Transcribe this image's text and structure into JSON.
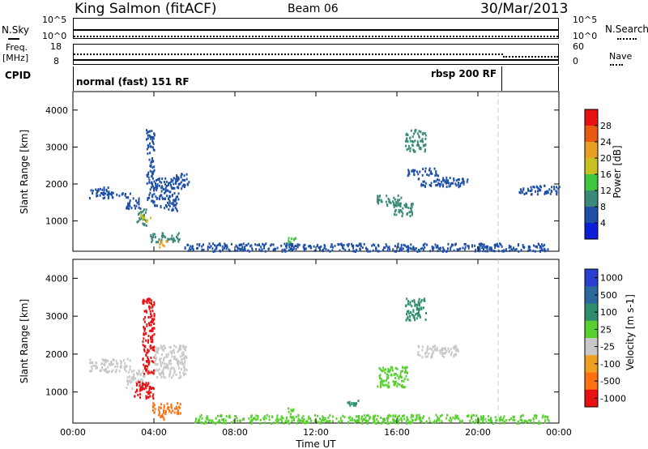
{
  "header": {
    "station": "King Salmon (fitACF)",
    "beam": "Beam 06",
    "date": "30/Mar/2013"
  },
  "top_panel": {
    "left_label": "N.Sky",
    "left_tick_hi": "10^5",
    "left_tick_lo": "10^0",
    "right_label": "N.Search",
    "right_tick_hi": "10^5",
    "right_tick_lo": "10^0"
  },
  "freq_panel": {
    "left_label_1": "Freq.",
    "left_label_2": "[MHz]",
    "left_tick_hi": "18",
    "left_tick_lo": "8",
    "right_label": "Nave",
    "right_tick_hi": "60",
    "right_tick_lo": "0"
  },
  "cpid_panel": {
    "label": "CPID",
    "mode_1": "normal (fast) 151 RF",
    "mode_2": "rbsp 200 RF",
    "mode_2_start_hour": 21.0
  },
  "colors": {
    "power": [
      "#0b1fd8",
      "#1f4fa6",
      "#3a8a7a",
      "#3fc63f",
      "#c8c020",
      "#e8a020",
      "#e85a10",
      "#e81010"
    ],
    "velocity": [
      "#2a3fd0",
      "#2b68a0",
      "#2f8c6c",
      "#58d030",
      "#c8c8c8",
      "#f0a020",
      "#ff7010",
      "#e81010"
    ]
  },
  "chart_data": [
    {
      "type": "heatmap",
      "name": "power",
      "xlabel": "",
      "ylabel": "Slant Range [km]",
      "xlim": [
        0,
        24
      ],
      "ylim": [
        180,
        4500
      ],
      "yticks": [
        "1000",
        "2000",
        "3000",
        "4000"
      ],
      "colorbar_label": "Power [dB]",
      "colorbar_ticks": [
        "4",
        "8",
        "12",
        "16",
        "20",
        "24",
        "28"
      ],
      "clim": [
        0,
        32
      ],
      "regions": [
        {
          "t0": 0.8,
          "t1": 1.8,
          "r0": 1620,
          "r1": 1950,
          "v": 6
        },
        {
          "t0": 1.8,
          "t1": 2.8,
          "r0": 1650,
          "r1": 1800,
          "v": 5
        },
        {
          "t0": 2.6,
          "t1": 3.3,
          "r0": 1350,
          "r1": 1650,
          "v": 7
        },
        {
          "t0": 3.1,
          "t1": 3.6,
          "r0": 900,
          "r1": 1350,
          "v": 9
        },
        {
          "t0": 3.3,
          "t1": 3.8,
          "r0": 1000,
          "r1": 1200,
          "v": 18
        },
        {
          "t0": 3.6,
          "t1": 4.0,
          "r0": 1500,
          "r1": 3500,
          "v": 6
        },
        {
          "t0": 4.0,
          "t1": 5.2,
          "r0": 1300,
          "r1": 2200,
          "v": 7
        },
        {
          "t0": 5.0,
          "t1": 5.7,
          "r0": 1900,
          "r1": 2300,
          "v": 6
        },
        {
          "t0": 3.8,
          "t1": 5.3,
          "r0": 450,
          "r1": 700,
          "v": 8
        },
        {
          "t0": 4.2,
          "t1": 4.6,
          "r0": 300,
          "r1": 500,
          "v": 20
        },
        {
          "t0": 15.0,
          "t1": 16.2,
          "r0": 1400,
          "r1": 1720,
          "v": 10
        },
        {
          "t0": 15.8,
          "t1": 16.8,
          "r0": 1150,
          "r1": 1500,
          "v": 9
        },
        {
          "t0": 16.4,
          "t1": 17.4,
          "r0": 2900,
          "r1": 3500,
          "v": 8
        },
        {
          "t0": 17.0,
          "t1": 19.5,
          "r0": 1950,
          "r1": 2200,
          "v": 6
        },
        {
          "t0": 16.5,
          "t1": 18.0,
          "r0": 2250,
          "r1": 2450,
          "v": 5
        },
        {
          "t0": 5.5,
          "t1": 23.5,
          "r0": 200,
          "r1": 420,
          "v": 6
        },
        {
          "t0": 10.6,
          "t1": 11.0,
          "r0": 420,
          "r1": 620,
          "v": 14
        },
        {
          "t0": 22.0,
          "t1": 24.0,
          "r0": 1750,
          "r1": 2000,
          "v": 5
        }
      ]
    },
    {
      "type": "heatmap",
      "name": "velocity",
      "xlabel": "Time UT",
      "ylabel": "Slant Range [km]",
      "xlim": [
        0,
        24
      ],
      "ylim": [
        180,
        4500
      ],
      "xticks": [
        "00:00",
        "04:00",
        "08:00",
        "12:00",
        "16:00",
        "20:00",
        "00:00"
      ],
      "yticks": [
        "1000",
        "2000",
        "3000",
        "4000"
      ],
      "colorbar_label": "Velocity [m s-1]",
      "colorbar_ticks": [
        "1000",
        "500",
        "100",
        "25",
        "-25",
        "-100",
        "-500",
        "-1000"
      ],
      "regions": [
        {
          "t0": 0.8,
          "t1": 2.8,
          "r0": 1550,
          "r1": 1900,
          "v": 4
        },
        {
          "t0": 2.6,
          "t1": 3.5,
          "r0": 1100,
          "r1": 1600,
          "v": 4
        },
        {
          "t0": 3.4,
          "t1": 4.0,
          "r0": 1500,
          "r1": 3500,
          "v": 7
        },
        {
          "t0": 3.0,
          "t1": 4.0,
          "r0": 850,
          "r1": 1300,
          "v": 7
        },
        {
          "t0": 4.0,
          "t1": 5.6,
          "r0": 1400,
          "r1": 2250,
          "v": 4
        },
        {
          "t0": 3.9,
          "t1": 5.3,
          "r0": 450,
          "r1": 750,
          "v": 6
        },
        {
          "t0": 4.1,
          "t1": 4.5,
          "r0": 300,
          "r1": 500,
          "v": 6
        },
        {
          "t0": 15.0,
          "t1": 16.5,
          "r0": 1150,
          "r1": 1700,
          "v": 3
        },
        {
          "t0": 16.4,
          "t1": 17.4,
          "r0": 2900,
          "r1": 3500,
          "v": 2
        },
        {
          "t0": 17.0,
          "t1": 19.0,
          "r0": 1950,
          "r1": 2250,
          "v": 4
        },
        {
          "t0": 6.0,
          "t1": 23.5,
          "r0": 200,
          "r1": 420,
          "v": 3
        },
        {
          "t0": 10.6,
          "t1": 11.0,
          "r0": 420,
          "r1": 600,
          "v": 3
        },
        {
          "t0": 13.4,
          "t1": 14.2,
          "r0": 650,
          "r1": 800,
          "v": 2
        }
      ]
    }
  ]
}
